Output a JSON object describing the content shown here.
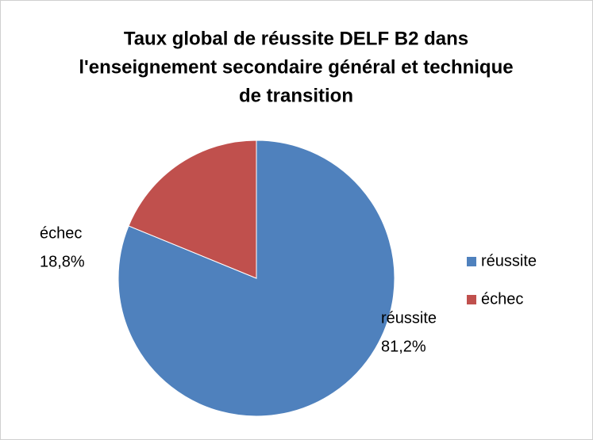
{
  "chart_data": {
    "type": "pie",
    "title": [
      "Taux global de réussite DELF B2 dans",
      "l'enseignement secondaire général et technique",
      "de transition"
    ],
    "categories": [
      "réussite",
      "échec"
    ],
    "values": [
      81.2,
      18.8
    ],
    "value_labels": [
      "81,2%",
      "18,8%"
    ],
    "colors": [
      "#4f81bd",
      "#c0504d"
    ],
    "legend": "right"
  }
}
